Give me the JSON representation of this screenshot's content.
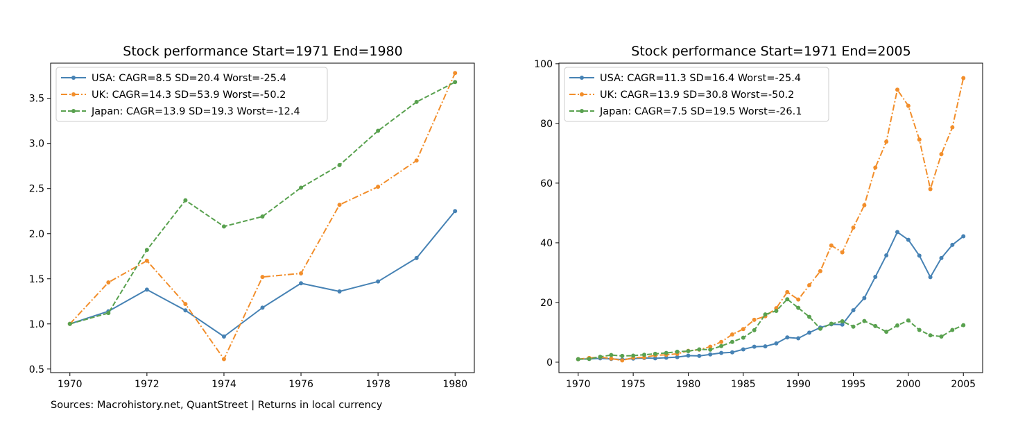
{
  "footnote": "Sources: Macrohistory.net, QuantStreet  |  Returns in local currency",
  "chart_data": [
    {
      "type": "line",
      "title": "Stock performance  Start=1971  End=1980",
      "xlabel": "",
      "ylabel": "",
      "xlim": [
        1969.5,
        1980.5
      ],
      "ylim": [
        0.46,
        3.89
      ],
      "x_ticks": [
        "1970",
        "1972",
        "1974",
        "1976",
        "1978",
        "1980"
      ],
      "y_ticks": [
        "0.5",
        "1.0",
        "1.5",
        "2.0",
        "2.5",
        "3.0",
        "3.5"
      ],
      "legend_position": "top-left",
      "grid": false,
      "x": [
        1970,
        1971,
        1972,
        1973,
        1974,
        1975,
        1976,
        1977,
        1978,
        1979,
        1980
      ],
      "series": [
        {
          "name": "USA: CAGR=8.5 SD=20.4 Worst=-25.4",
          "color": "#4682b4",
          "dash": "solid",
          "values": [
            1.0,
            1.14,
            1.38,
            1.15,
            0.86,
            1.18,
            1.45,
            1.36,
            1.47,
            1.73,
            2.25
          ]
        },
        {
          "name": "UK: CAGR=14.3 SD=53.9 Worst=-50.2",
          "color": "#f28e2b",
          "dash": "dashdot",
          "values": [
            1.0,
            1.46,
            1.7,
            1.22,
            0.61,
            1.52,
            1.56,
            2.32,
            2.52,
            2.81,
            3.78
          ]
        },
        {
          "name": "Japan: CAGR=13.9 SD=19.3 Worst=-12.4",
          "color": "#59a14f",
          "dash": "dashed",
          "values": [
            1.0,
            1.12,
            1.82,
            2.37,
            2.08,
            2.19,
            2.51,
            2.76,
            3.14,
            3.46,
            3.68
          ]
        }
      ]
    },
    {
      "type": "line",
      "title": "Stock performance  Start=1971  End=2005",
      "xlabel": "",
      "ylabel": "",
      "xlim": [
        1968.25,
        2006.75
      ],
      "ylim": [
        -3.5,
        100.2
      ],
      "x_ticks": [
        "1970",
        "1975",
        "1980",
        "1985",
        "1990",
        "1995",
        "2000",
        "2005"
      ],
      "y_ticks": [
        "0",
        "20",
        "40",
        "60",
        "80",
        "100"
      ],
      "legend_position": "top-left",
      "grid": false,
      "x": [
        1970,
        1971,
        1972,
        1973,
        1974,
        1975,
        1976,
        1977,
        1978,
        1979,
        1980,
        1981,
        1982,
        1983,
        1984,
        1985,
        1986,
        1987,
        1988,
        1989,
        1990,
        1991,
        1992,
        1993,
        1994,
        1995,
        1996,
        1997,
        1998,
        1999,
        2000,
        2001,
        2002,
        2003,
        2004,
        2005
      ],
      "series": [
        {
          "name": "USA: CAGR=11.3 SD=16.4 Worst=-25.4",
          "color": "#4682b4",
          "dash": "solid",
          "values": [
            1.0,
            1.1,
            1.3,
            1.1,
            0.9,
            1.2,
            1.4,
            1.3,
            1.5,
            1.7,
            2.2,
            2.1,
            2.6,
            3.1,
            3.3,
            4.3,
            5.2,
            5.3,
            6.3,
            8.3,
            8.0,
            9.9,
            11.6,
            12.7,
            12.6,
            17.4,
            21.5,
            28.6,
            35.8,
            43.6,
            41.0,
            35.7,
            28.5,
            34.9,
            39.3,
            42.2
          ]
        },
        {
          "name": "UK: CAGR=13.9 SD=30.8 Worst=-50.2",
          "color": "#f28e2b",
          "dash": "dashdot",
          "values": [
            1.0,
            1.4,
            1.7,
            1.2,
            0.6,
            1.5,
            1.6,
            2.3,
            2.5,
            2.8,
            3.8,
            4.2,
            5.2,
            6.8,
            9.3,
            11.1,
            14.2,
            15.4,
            18.1,
            23.5,
            21.0,
            25.8,
            30.5,
            39.1,
            36.8,
            45.1,
            52.6,
            65.2,
            73.9,
            91.3,
            85.9,
            74.6,
            58.0,
            69.7,
            78.7,
            95.2
          ]
        },
        {
          "name": "Japan: CAGR=7.5 SD=19.5 Worst=-26.1",
          "color": "#59a14f",
          "dash": "dashed",
          "values": [
            1.0,
            1.1,
            1.8,
            2.4,
            2.1,
            2.2,
            2.5,
            2.8,
            3.1,
            3.5,
            3.7,
            4.3,
            4.2,
            5.4,
            6.8,
            8.2,
            10.7,
            16.0,
            17.2,
            21.1,
            18.2,
            15.2,
            11.2,
            12.9,
            13.7,
            11.9,
            13.8,
            12.1,
            10.2,
            12.3,
            14.0,
            10.8,
            9.0,
            8.6,
            10.8,
            12.4
          ]
        }
      ]
    }
  ]
}
